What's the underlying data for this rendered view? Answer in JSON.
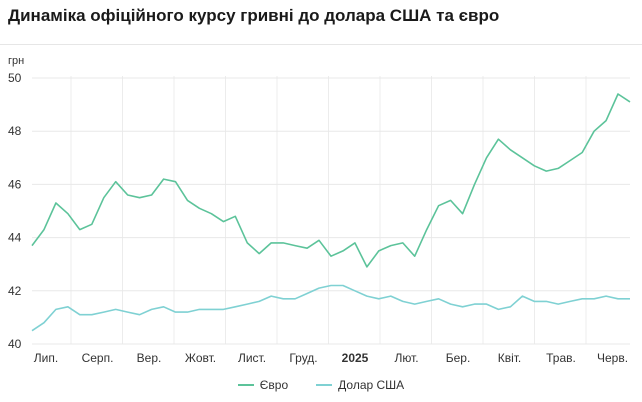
{
  "chart_data": {
    "type": "line",
    "title": "Динаміка офіційного курсу гривні до долара США та євро",
    "y_unit": "грн",
    "ylim": [
      40,
      50
    ],
    "y_ticks": [
      "40",
      "42",
      "44",
      "46",
      "48",
      "50"
    ],
    "x_tick_labels": [
      "Лип.",
      "Серп.",
      "Вер.",
      "Жовт.",
      "Лист.",
      "Груд.",
      "2025",
      "Лют.",
      "Бер.",
      "Квіт.",
      "Трав.",
      "Черв."
    ],
    "x_tick_bold": [
      false,
      false,
      false,
      false,
      false,
      false,
      true,
      false,
      false,
      false,
      false,
      false
    ],
    "grid": true,
    "legend_position": "bottom",
    "series": [
      {
        "name": "Євро",
        "color": "#5cc39a",
        "values": [
          43.7,
          44.3,
          45.3,
          44.9,
          44.3,
          44.5,
          45.5,
          46.1,
          45.6,
          45.5,
          45.6,
          46.2,
          46.1,
          45.4,
          45.1,
          44.9,
          44.6,
          44.8,
          43.8,
          43.4,
          43.8,
          43.8,
          43.7,
          43.6,
          43.9,
          43.3,
          43.5,
          43.8,
          42.9,
          43.5,
          43.7,
          43.8,
          43.3,
          44.3,
          45.2,
          45.4,
          44.9,
          46.0,
          47.0,
          47.7,
          47.3,
          47.0,
          46.7,
          46.5,
          46.6,
          46.9,
          47.2,
          48.0,
          48.4,
          49.4,
          49.1
        ],
        "dates_anchor": [
          "Лип.",
          "Черв."
        ]
      },
      {
        "name": "Долар США",
        "color": "#7fd1d3",
        "values": [
          40.5,
          40.8,
          41.3,
          41.4,
          41.1,
          41.1,
          41.2,
          41.3,
          41.2,
          41.1,
          41.3,
          41.4,
          41.2,
          41.2,
          41.3,
          41.3,
          41.3,
          41.4,
          41.5,
          41.6,
          41.8,
          41.7,
          41.7,
          41.9,
          42.1,
          42.2,
          42.2,
          42.0,
          41.8,
          41.7,
          41.8,
          41.6,
          41.5,
          41.6,
          41.7,
          41.5,
          41.4,
          41.5,
          41.5,
          41.3,
          41.4,
          41.8,
          41.6,
          41.6,
          41.5,
          41.6,
          41.7,
          41.7,
          41.8,
          41.7,
          41.7
        ]
      }
    ]
  }
}
